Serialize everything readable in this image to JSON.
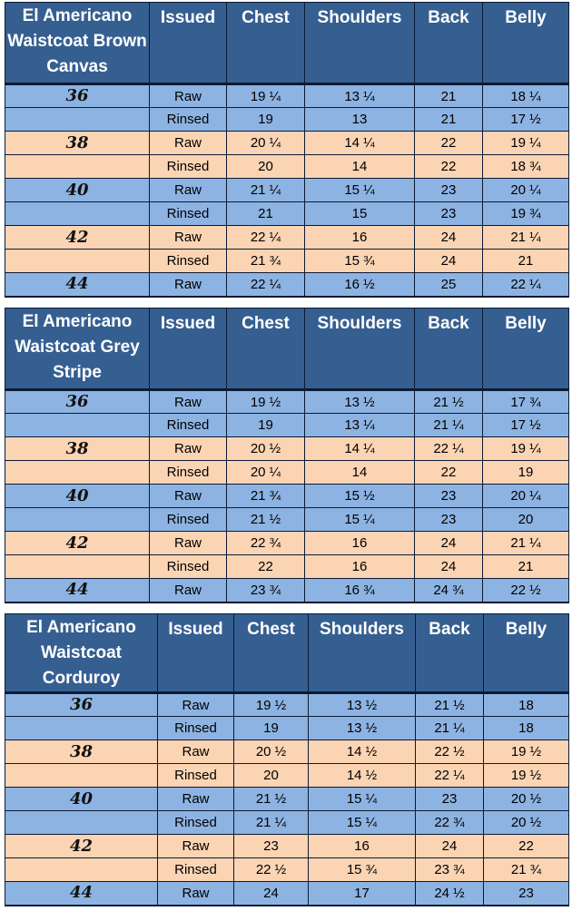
{
  "colors": {
    "header_background": "#365f91",
    "header_text": "#ffffff",
    "row_blue": "#8db3e2",
    "row_peach": "#fbd4b4",
    "border": "#0c1a33"
  },
  "column_headers": [
    "Issued",
    "Chest",
    "Shoulders",
    "Back",
    "Belly"
  ],
  "tables": [
    {
      "title": "El Americano Waistcoat Brown Canvas",
      "rows": [
        {
          "size": "36",
          "issued": "Raw",
          "chest": "19 ¼",
          "shoulders": "13 ¼",
          "back": "21",
          "belly": "18 ¼"
        },
        {
          "size": "",
          "issued": "Rinsed",
          "chest": "19",
          "shoulders": "13",
          "back": "21",
          "belly": "17 ½"
        },
        {
          "size": "38",
          "issued": "Raw",
          "chest": "20 ¼",
          "shoulders": "14 ¼",
          "back": "22",
          "belly": "19 ¼"
        },
        {
          "size": "",
          "issued": "Rinsed",
          "chest": "20",
          "shoulders": "14",
          "back": "22",
          "belly": "18 ¾"
        },
        {
          "size": "40",
          "issued": "Raw",
          "chest": "21 ¼",
          "shoulders": "15 ¼",
          "back": "23",
          "belly": "20 ¼"
        },
        {
          "size": "",
          "issued": "Rinsed",
          "chest": "21",
          "shoulders": "15",
          "back": "23",
          "belly": "19 ¾"
        },
        {
          "size": "42",
          "issued": "Raw",
          "chest": "22 ¼",
          "shoulders": "16",
          "back": "24",
          "belly": "21 ¼"
        },
        {
          "size": "",
          "issued": "Rinsed",
          "chest": "21 ¾",
          "shoulders": "15 ¾",
          "back": "24",
          "belly": "21"
        },
        {
          "size": "44",
          "issued": "Raw",
          "chest": "22 ¼",
          "shoulders": "16 ½",
          "back": "25",
          "belly": "22 ¼"
        }
      ]
    },
    {
      "title": "El Americano Waistcoat Grey Stripe",
      "rows": [
        {
          "size": "36",
          "issued": "Raw",
          "chest": "19 ½",
          "shoulders": "13 ½",
          "back": "21 ½",
          "belly": "17 ¾"
        },
        {
          "size": "",
          "issued": "Rinsed",
          "chest": "19",
          "shoulders": "13 ¼",
          "back": "21 ¼",
          "belly": "17 ½"
        },
        {
          "size": "38",
          "issued": "Raw",
          "chest": "20 ½",
          "shoulders": "14 ¼",
          "back": "22 ¼",
          "belly": "19 ¼"
        },
        {
          "size": "",
          "issued": "Rinsed",
          "chest": "20 ¼",
          "shoulders": "14",
          "back": "22",
          "belly": "19"
        },
        {
          "size": "40",
          "issued": "Raw",
          "chest": "21 ¾",
          "shoulders": "15 ½",
          "back": "23",
          "belly": "20 ¼"
        },
        {
          "size": "",
          "issued": "Rinsed",
          "chest": "21 ½",
          "shoulders": "15 ¼",
          "back": "23",
          "belly": "20"
        },
        {
          "size": "42",
          "issued": "Raw",
          "chest": "22 ¾",
          "shoulders": "16",
          "back": "24",
          "belly": "21 ¼"
        },
        {
          "size": "",
          "issued": "Rinsed",
          "chest": "22",
          "shoulders": "16",
          "back": "24",
          "belly": "21"
        },
        {
          "size": "44",
          "issued": "Raw",
          "chest": "23 ¾",
          "shoulders": "16 ¾",
          "back": "24 ¾",
          "belly": "22 ½"
        }
      ]
    },
    {
      "title": "El Americano Waistcoat Corduroy",
      "rows": [
        {
          "size": "36",
          "issued": "Raw",
          "chest": "19 ½",
          "shoulders": "13 ½",
          "back": "21 ½",
          "belly": "18"
        },
        {
          "size": "",
          "issued": "Rinsed",
          "chest": "19",
          "shoulders": "13 ½",
          "back": "21 ¼",
          "belly": "18"
        },
        {
          "size": "38",
          "issued": "Raw",
          "chest": "20 ½",
          "shoulders": "14 ½",
          "back": "22 ½",
          "belly": "19 ½"
        },
        {
          "size": "",
          "issued": "Rinsed",
          "chest": "20",
          "shoulders": "14 ½",
          "back": "22 ¼",
          "belly": "19 ½"
        },
        {
          "size": "40",
          "issued": "Raw",
          "chest": "21 ½",
          "shoulders": "15 ¼",
          "back": "23",
          "belly": "20 ½"
        },
        {
          "size": "",
          "issued": "Rinsed",
          "chest": "21 ¼",
          "shoulders": "15 ¼",
          "back": "22 ¾",
          "belly": "20 ½"
        },
        {
          "size": "42",
          "issued": "Raw",
          "chest": "23",
          "shoulders": "16",
          "back": "24",
          "belly": "22"
        },
        {
          "size": "",
          "issued": "Rinsed",
          "chest": "22 ½",
          "shoulders": "15 ¾",
          "back": "23 ¾",
          "belly": "21 ¾"
        },
        {
          "size": "44",
          "issued": "Raw",
          "chest": "24",
          "shoulders": "17",
          "back": "24 ½",
          "belly": "23"
        }
      ]
    }
  ]
}
